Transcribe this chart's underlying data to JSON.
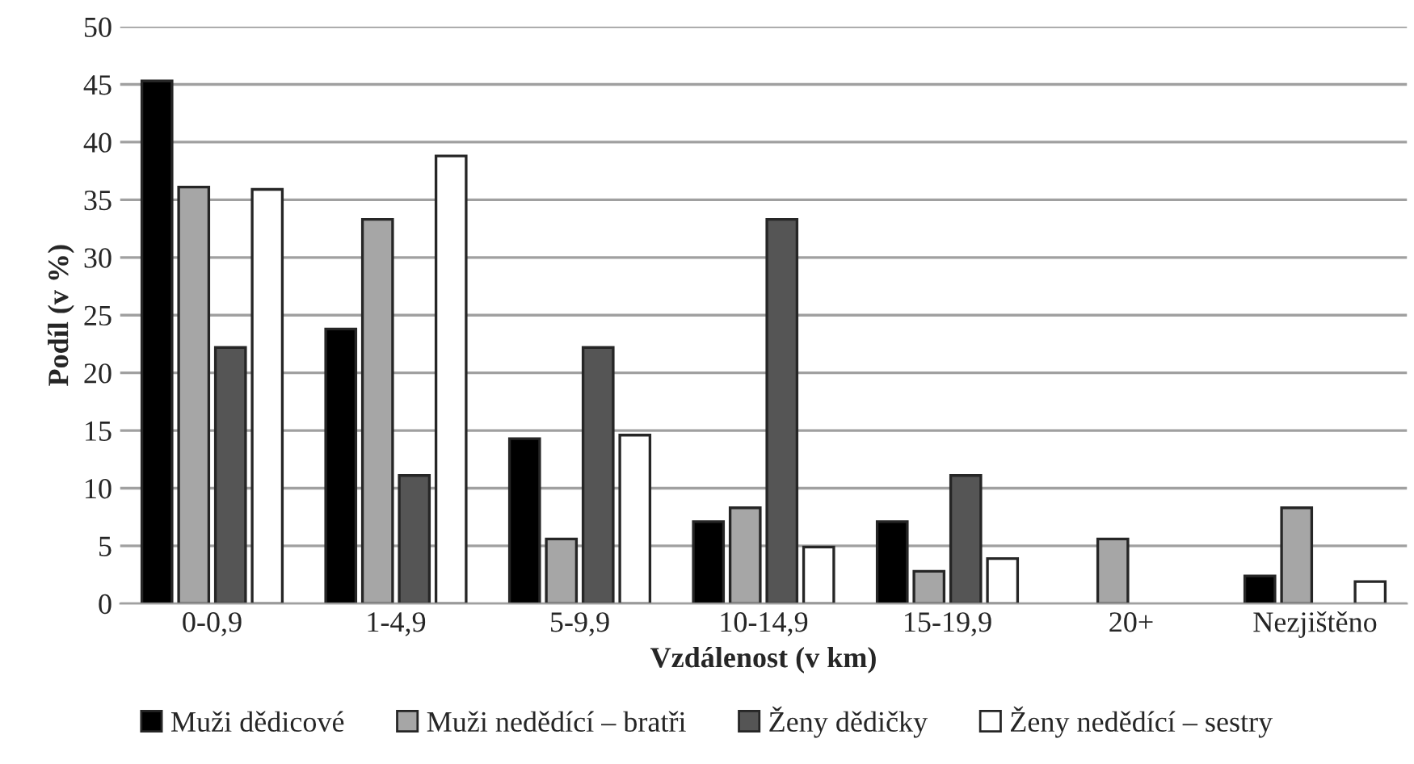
{
  "chart_data": {
    "type": "bar",
    "xlabel": "Vzdálenost (v km)",
    "ylabel": "Podíl (v %)",
    "categories": [
      "0-0,9",
      "1-4,9",
      "5-9,9",
      "10-14,9",
      "15-19,9",
      "20+",
      "Nezjištěno"
    ],
    "series": [
      {
        "name": "Muži dědicové",
        "color": "#000000",
        "values": [
          45.3,
          23.8,
          14.3,
          7.1,
          7.1,
          null,
          2.4
        ]
      },
      {
        "name": "Muži nedědící – bratři",
        "color": "#a6a6a6",
        "values": [
          36.1,
          33.3,
          5.6,
          8.3,
          2.8,
          5.6,
          8.3
        ]
      },
      {
        "name": "Ženy dědičky",
        "color": "#555555",
        "values": [
          22.2,
          11.1,
          22.2,
          33.3,
          11.1,
          null,
          null
        ]
      },
      {
        "name": "Ženy nedědící – sestry",
        "color": "#ffffff",
        "values": [
          35.9,
          38.8,
          14.6,
          4.9,
          3.9,
          null,
          1.9
        ]
      }
    ],
    "ylim": [
      0,
      50
    ],
    "yticks": [
      0,
      5,
      10,
      15,
      20,
      25,
      30,
      35,
      40,
      45,
      50
    ],
    "grid": "y",
    "legend": "bottom"
  }
}
